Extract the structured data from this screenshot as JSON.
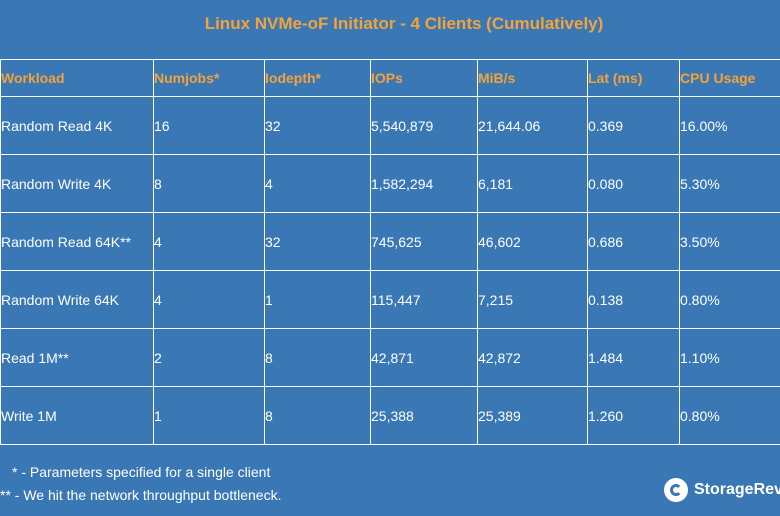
{
  "chart_data": {
    "type": "table",
    "title": "Linux NVMe-oF Initiator - 4 Clients (Cumulatively)",
    "columns": [
      "Workload",
      "Numjobs*",
      "Iodepth*",
      "IOPs",
      "MiB/s",
      "Lat (ms)",
      "CPU Usage"
    ],
    "rows": [
      [
        "Random Read 4K",
        "16",
        "32",
        "5,540,879",
        "21,644.06",
        "0.369",
        "16.00%"
      ],
      [
        "Random Write 4K",
        "8",
        "4",
        "1,582,294",
        "6,181",
        "0.080",
        "5.30%"
      ],
      [
        "Random Read 64K**",
        "4",
        "32",
        "745,625",
        "46,602",
        "0.686",
        "3.50%"
      ],
      [
        "Random Write 64K",
        "4",
        "1",
        "115,447",
        "7,215",
        "0.138",
        "0.80%"
      ],
      [
        "Read 1M**",
        "2",
        "8",
        "42,871",
        "42,872",
        "1.484",
        "1.10%"
      ],
      [
        "Write 1M",
        "1",
        "8",
        "25,388",
        "25,389",
        "1.260",
        "0.80%"
      ]
    ],
    "footnotes": [
      "* - Parameters specified for a single client",
      "** - We hit the network throughput bottleneck."
    ]
  },
  "brand": {
    "name": "StorageRev"
  },
  "colors": {
    "background": "#3a78b5",
    "header_text": "#f2a33a",
    "body_text": "#ffffff"
  }
}
